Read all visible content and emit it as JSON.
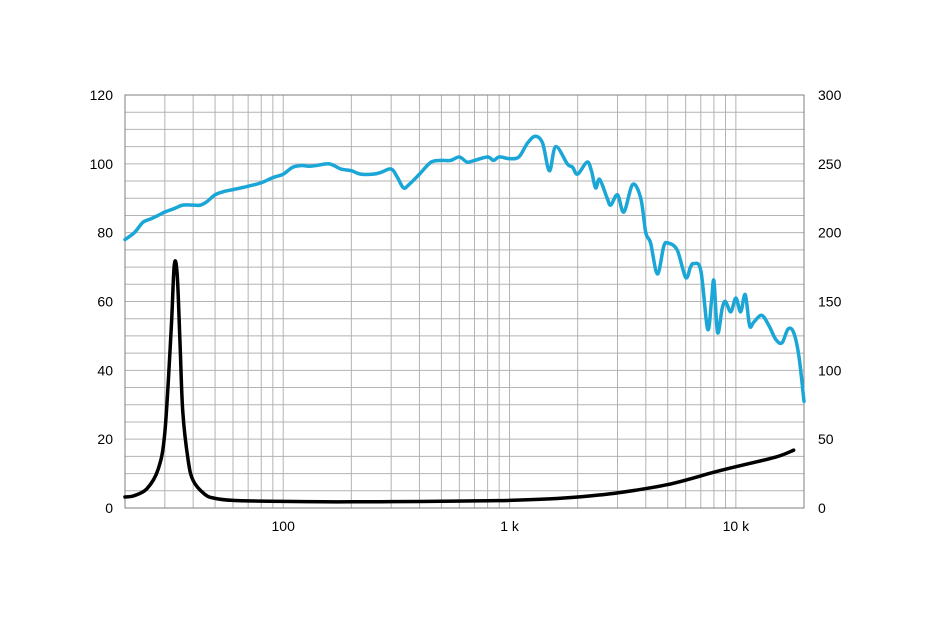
{
  "chart_data": {
    "type": "line",
    "x_scale": "log",
    "xlim": [
      20,
      20000
    ],
    "ylim_left": [
      0,
      120
    ],
    "ylim_right": [
      0,
      300
    ],
    "grid": true,
    "x_tick_labels": [
      {
        "value": 100,
        "label": "100"
      },
      {
        "value": 1000,
        "label": "1 k"
      },
      {
        "value": 10000,
        "label": "10 k"
      }
    ],
    "y_left_ticks": [
      0,
      20,
      40,
      60,
      80,
      100,
      120
    ],
    "y_right_ticks": [
      0,
      50,
      100,
      150,
      200,
      250,
      300
    ],
    "series": [
      {
        "axis": "left",
        "color": "#1aa6d6",
        "x": [
          20,
          22,
          24,
          26,
          28,
          30,
          33,
          36,
          40,
          43,
          46,
          50,
          55,
          60,
          65,
          70,
          80,
          90,
          100,
          110,
          120,
          130,
          140,
          160,
          180,
          200,
          220,
          250,
          270,
          300,
          320,
          340,
          360,
          400,
          450,
          500,
          550,
          600,
          650,
          700,
          800,
          850,
          900,
          1000,
          1100,
          1200,
          1300,
          1400,
          1500,
          1600,
          1800,
          1900,
          2000,
          2200,
          2300,
          2400,
          2500,
          2700,
          2800,
          3000,
          3200,
          3500,
          3800,
          4000,
          4200,
          4500,
          4800,
          5000,
          5500,
          6000,
          6300,
          6500,
          7000,
          7500,
          7800,
          8000,
          8300,
          8700,
          9000,
          9500,
          10000,
          10500,
          11000,
          11500,
          12000,
          13000,
          14000,
          15000,
          16000,
          17000,
          18000,
          19000,
          20000
        ],
        "values": [
          78,
          80,
          83,
          84,
          85,
          86,
          87,
          88,
          88,
          88,
          89,
          91,
          92,
          92.5,
          93,
          93.5,
          94.5,
          96,
          97,
          99,
          99.5,
          99.3,
          99.5,
          100,
          98.5,
          98,
          97,
          97,
          97.5,
          98.5,
          96,
          93,
          94,
          97,
          100.5,
          101,
          101,
          102,
          100.5,
          101,
          102,
          101,
          102,
          101.5,
          102,
          106,
          108,
          106,
          98,
          105,
          100,
          99,
          97,
          100.5,
          98,
          93,
          95.5,
          90,
          88,
          91,
          86,
          94,
          90,
          80,
          77,
          68,
          76,
          77,
          75,
          67,
          70,
          71,
          69,
          52,
          60,
          66,
          51,
          58,
          60,
          57,
          61,
          57,
          62,
          53,
          54,
          56,
          53,
          49,
          48,
          52,
          51,
          44,
          31
        ]
      },
      {
        "axis": "right",
        "color": "#000000",
        "x": [
          20,
          22,
          25,
          28,
          30,
          32,
          33,
          34,
          35,
          36,
          38,
          40,
          45,
          50,
          60,
          80,
          100,
          150,
          200,
          300,
          500,
          800,
          1000,
          1500,
          2000,
          3000,
          5000,
          8000,
          10000,
          15000,
          18000
        ],
        "values": [
          8,
          9,
          14,
          28,
          55,
          130,
          176,
          170,
          120,
          70,
          35,
          20,
          10,
          7,
          5.5,
          5,
          4.8,
          4.5,
          4.5,
          4.6,
          4.9,
          5.3,
          5.5,
          6.6,
          8,
          11,
          17,
          26,
          30,
          37,
          42
        ]
      }
    ]
  }
}
